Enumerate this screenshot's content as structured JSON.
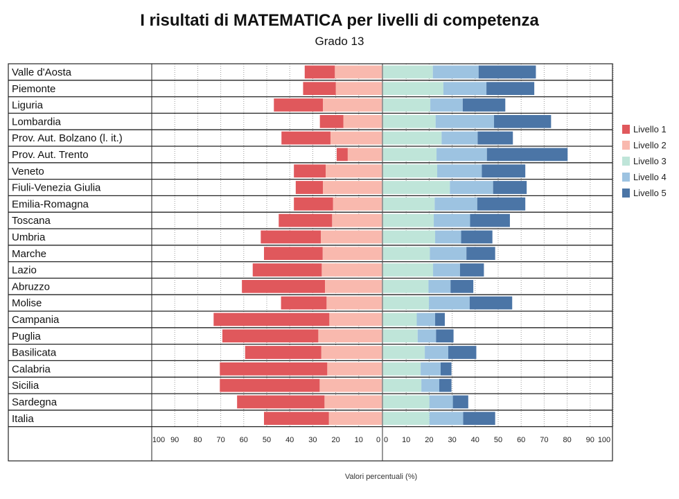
{
  "chart_data": {
    "type": "bar",
    "subtype": "diverging-stacked-horizontal",
    "title": "I risultati di MATEMATICA per livelli di competenza",
    "subtitle": "Grado 13",
    "xlabel": "Valori percentuali (%)",
    "xlim": [
      -100,
      100
    ],
    "xticks_left": [
      "100",
      "90",
      "80",
      "70",
      "60",
      "50",
      "40",
      "30",
      "20",
      "10",
      "0"
    ],
    "xticks_right": [
      "0",
      "10",
      "20",
      "30",
      "40",
      "50",
      "60",
      "70",
      "80",
      "90",
      "100"
    ],
    "grid": true,
    "legend_position": "right",
    "colors": {
      "Livello 1": "#e0585c",
      "Livello 2": "#f9b9ae",
      "Livello 3": "#bfe5d9",
      "Livello 4": "#9dc3e1",
      "Livello 5": "#4b75a6"
    },
    "categories": [
      "Valle d'Aosta",
      "Piemonte",
      "Liguria",
      "Lombardia",
      "Prov. Aut. Bolzano (l. it.)",
      "Prov. Aut. Trento",
      "Veneto",
      "Fiuli-Venezia Giulia",
      "Emilia-Romagna",
      "Toscana",
      "Umbria",
      "Marche",
      "Lazio",
      "Abruzzo",
      "Molise",
      "Campania",
      "Puglia",
      "Basilicata",
      "Calabria",
      "Sicilia",
      "Sardegna",
      "Italia"
    ],
    "series": [
      {
        "name": "Livello 1",
        "side": "left",
        "values": [
          13.1,
          14.2,
          21.3,
          10.2,
          21.3,
          4.8,
          13.8,
          11.8,
          17.0,
          23.2,
          26.1,
          25.5,
          30.0,
          36.1,
          19.8,
          50.3,
          41.7,
          33.1,
          46.7,
          43.4,
          38.0,
          28.2
        ]
      },
      {
        "name": "Livello 2",
        "side": "left",
        "values": [
          20.4,
          20.0,
          25.6,
          16.7,
          22.3,
          14.8,
          24.4,
          25.6,
          21.2,
          21.6,
          26.5,
          25.7,
          26.1,
          24.7,
          24.0,
          22.8,
          27.6,
          26.3,
          23.7,
          27.0,
          24.9,
          23.0
        ]
      },
      {
        "name": "Livello 3",
        "side": "right",
        "values": [
          21.6,
          26.2,
          20.5,
          22.8,
          25.4,
          23.2,
          23.5,
          29.0,
          22.4,
          22.0,
          22.6,
          20.3,
          21.7,
          19.7,
          19.9,
          14.6,
          15.0,
          18.1,
          16.3,
          16.6,
          20.1,
          20.1
        ]
      },
      {
        "name": "Livello 4",
        "side": "right",
        "values": [
          19.9,
          18.7,
          14.1,
          25.4,
          15.7,
          21.9,
          19.4,
          18.8,
          18.5,
          15.8,
          11.3,
          15.9,
          11.7,
          9.6,
          17.7,
          8.0,
          8.0,
          10.2,
          8.7,
          7.8,
          10.2,
          14.7
        ]
      },
      {
        "name": "Livello 5",
        "side": "right",
        "values": [
          24.9,
          20.8,
          18.5,
          24.8,
          15.3,
          35.1,
          18.9,
          14.6,
          20.9,
          17.3,
          13.6,
          12.5,
          10.4,
          9.9,
          18.5,
          4.2,
          7.6,
          12.2,
          4.7,
          5.3,
          6.7,
          13.9
        ]
      }
    ]
  }
}
